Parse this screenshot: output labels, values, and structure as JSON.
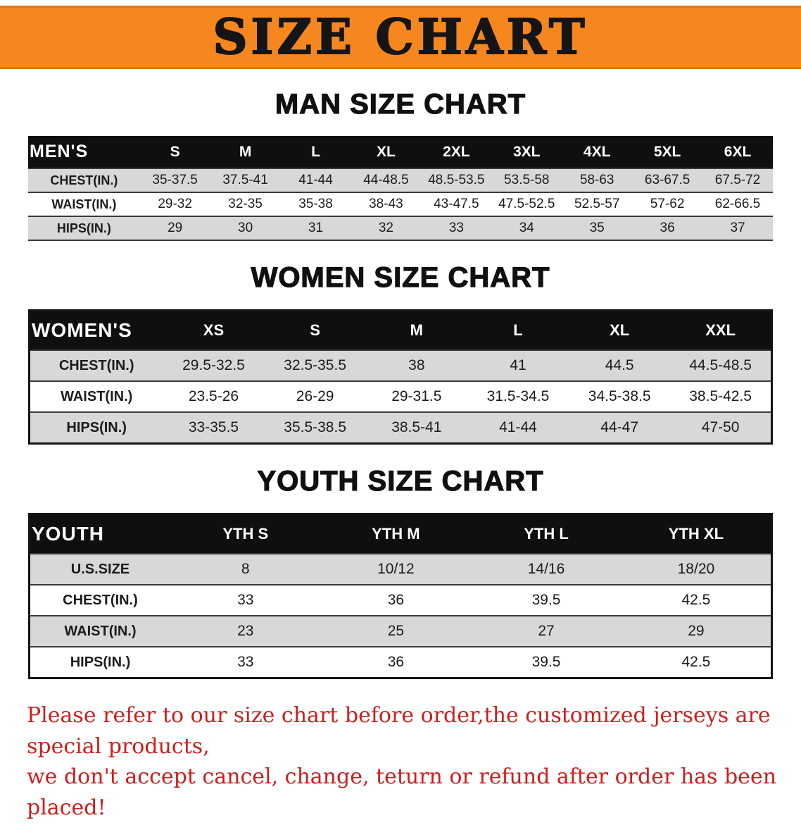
{
  "banner": {
    "title": "SIZE CHART"
  },
  "colors": {
    "banner_orange": "#f6871f",
    "header_black": "#0f0f0f",
    "row_gray": "#d8d8d8",
    "disclaimer_red": "#d11c1c"
  },
  "chart_data": [
    {
      "type": "table",
      "name": "men-size-table",
      "title": "MAN SIZE CHART",
      "corner_label": "MEN'S",
      "columns": [
        "S",
        "M",
        "L",
        "XL",
        "2XL",
        "3XL",
        "4XL",
        "5XL",
        "6XL"
      ],
      "rows": [
        {
          "label": "CHEST(IN.)",
          "values": [
            "35-37.5",
            "37.5-41",
            "41-44",
            "44-48.5",
            "48.5-53.5",
            "53.5-58",
            "58-63",
            "63-67.5",
            "67.5-72"
          ]
        },
        {
          "label": "WAIST(IN.)",
          "values": [
            "29-32",
            "32-35",
            "35-38",
            "38-43",
            "43-47.5",
            "47.5-52.5",
            "52.5-57",
            "57-62",
            "62-66.5"
          ]
        },
        {
          "label": "HIPS(IN.)",
          "values": [
            "29",
            "30",
            "31",
            "32",
            "33",
            "34",
            "35",
            "36",
            "37"
          ]
        }
      ]
    },
    {
      "type": "table",
      "name": "women-size-table",
      "title": "WOMEN SIZE CHART",
      "corner_label": "WOMEN'S",
      "columns": [
        "XS",
        "S",
        "M",
        "L",
        "XL",
        "XXL"
      ],
      "rows": [
        {
          "label": "CHEST(IN.)",
          "values": [
            "29.5-32.5",
            "32.5-35.5",
            "38",
            "41",
            "44.5",
            "44.5-48.5"
          ]
        },
        {
          "label": "WAIST(IN.)",
          "values": [
            "23.5-26",
            "26-29",
            "29-31.5",
            "31.5-34.5",
            "34.5-38.5",
            "38.5-42.5"
          ]
        },
        {
          "label": "HIPS(IN.)",
          "values": [
            "33-35.5",
            "35.5-38.5",
            "38.5-41",
            "41-44",
            "44-47",
            "47-50"
          ]
        }
      ]
    },
    {
      "type": "table",
      "name": "youth-size-table",
      "title": "YOUTH SIZE CHART",
      "corner_label": "YOUTH",
      "columns": [
        "YTH S",
        "YTH M",
        "YTH L",
        "YTH XL"
      ],
      "rows": [
        {
          "label": "U.S.SIZE",
          "values": [
            "8",
            "10/12",
            "14/16",
            "18/20"
          ]
        },
        {
          "label": "CHEST(IN.)",
          "values": [
            "33",
            "36",
            "39.5",
            "42.5"
          ]
        },
        {
          "label": "WAIST(IN.)",
          "values": [
            "23",
            "25",
            "27",
            "29"
          ]
        },
        {
          "label": "HIPS(IN.)",
          "values": [
            "33",
            "36",
            "39.5",
            "42.5"
          ]
        }
      ]
    }
  ],
  "disclaimer": {
    "lines": [
      "Please refer to our size chart before order,the customized jerseys are special products,",
      "we don't accept cancel, change, teturn or refund after order has been placed!"
    ]
  }
}
